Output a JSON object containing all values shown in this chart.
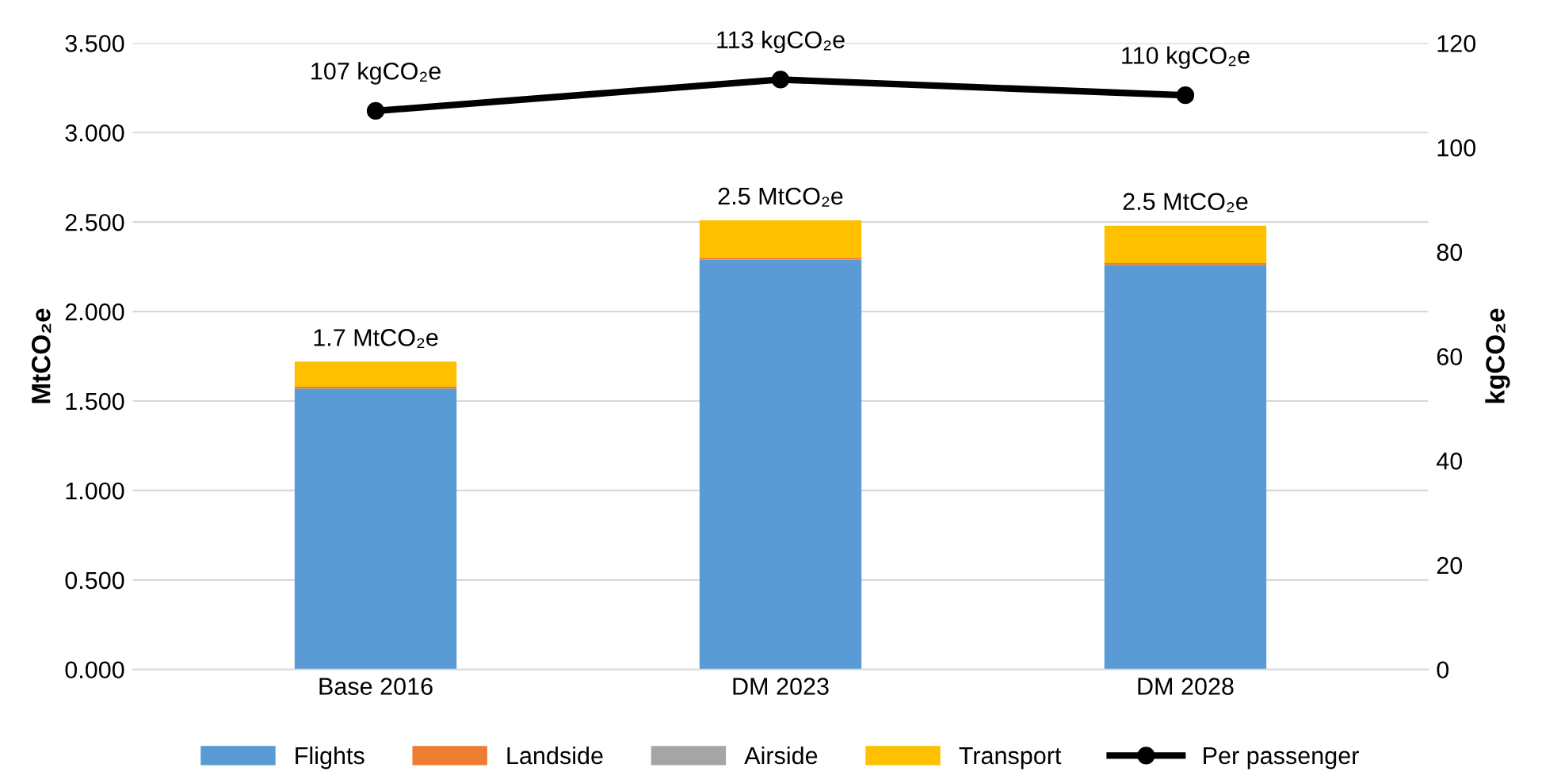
{
  "chart_data": {
    "type": "bar",
    "stacked": true,
    "ylabel": "MtCO₂e",
    "y2label": "kgCO₂e",
    "categories": [
      "Base 2016",
      "DM 2023",
      "DM 2028"
    ],
    "series": [
      {
        "name": "Flights",
        "color": "#5b9bd5",
        "values": [
          1.57,
          2.29,
          2.26
        ]
      },
      {
        "name": "Landside",
        "color": "#ed7d31",
        "values": [
          0.01,
          0.01,
          0.01
        ]
      },
      {
        "name": "Airside",
        "color": "#a5a5a5",
        "values": [
          0,
          0,
          0
        ]
      },
      {
        "name": "Transport",
        "color": "#ffc000",
        "values": [
          0.14,
          0.21,
          0.21
        ]
      },
      {
        "name": "Per passenger",
        "type": "line",
        "axis": "y2",
        "color": "#000000",
        "marker": "circle",
        "values": [
          107,
          113,
          110
        ],
        "value_labels": [
          "107 kgCO₂e",
          "113 kgCO₂e",
          "110 kgCO₂e"
        ]
      }
    ],
    "totals": [
      "1.7 MtCO₂e",
      "2.5 MtCO₂e",
      "2.5 MtCO₂e"
    ],
    "ylim": [
      0,
      3.5
    ],
    "yticks": [
      {
        "value": 0,
        "label": "0.000"
      },
      {
        "value": 0.5,
        "label": "0.500"
      },
      {
        "value": 1,
        "label": "1.000"
      },
      {
        "value": 1.5,
        "label": "1.500"
      },
      {
        "value": 2,
        "label": "2.000"
      },
      {
        "value": 2.5,
        "label": "2.500"
      },
      {
        "value": 3,
        "label": "3.000"
      },
      {
        "value": 3.5,
        "label": "3.500"
      }
    ],
    "y2lim": [
      0,
      120
    ],
    "y2ticks": [
      0,
      20,
      40,
      60,
      80,
      100,
      120
    ],
    "grid": "y",
    "legend": "bottom"
  }
}
